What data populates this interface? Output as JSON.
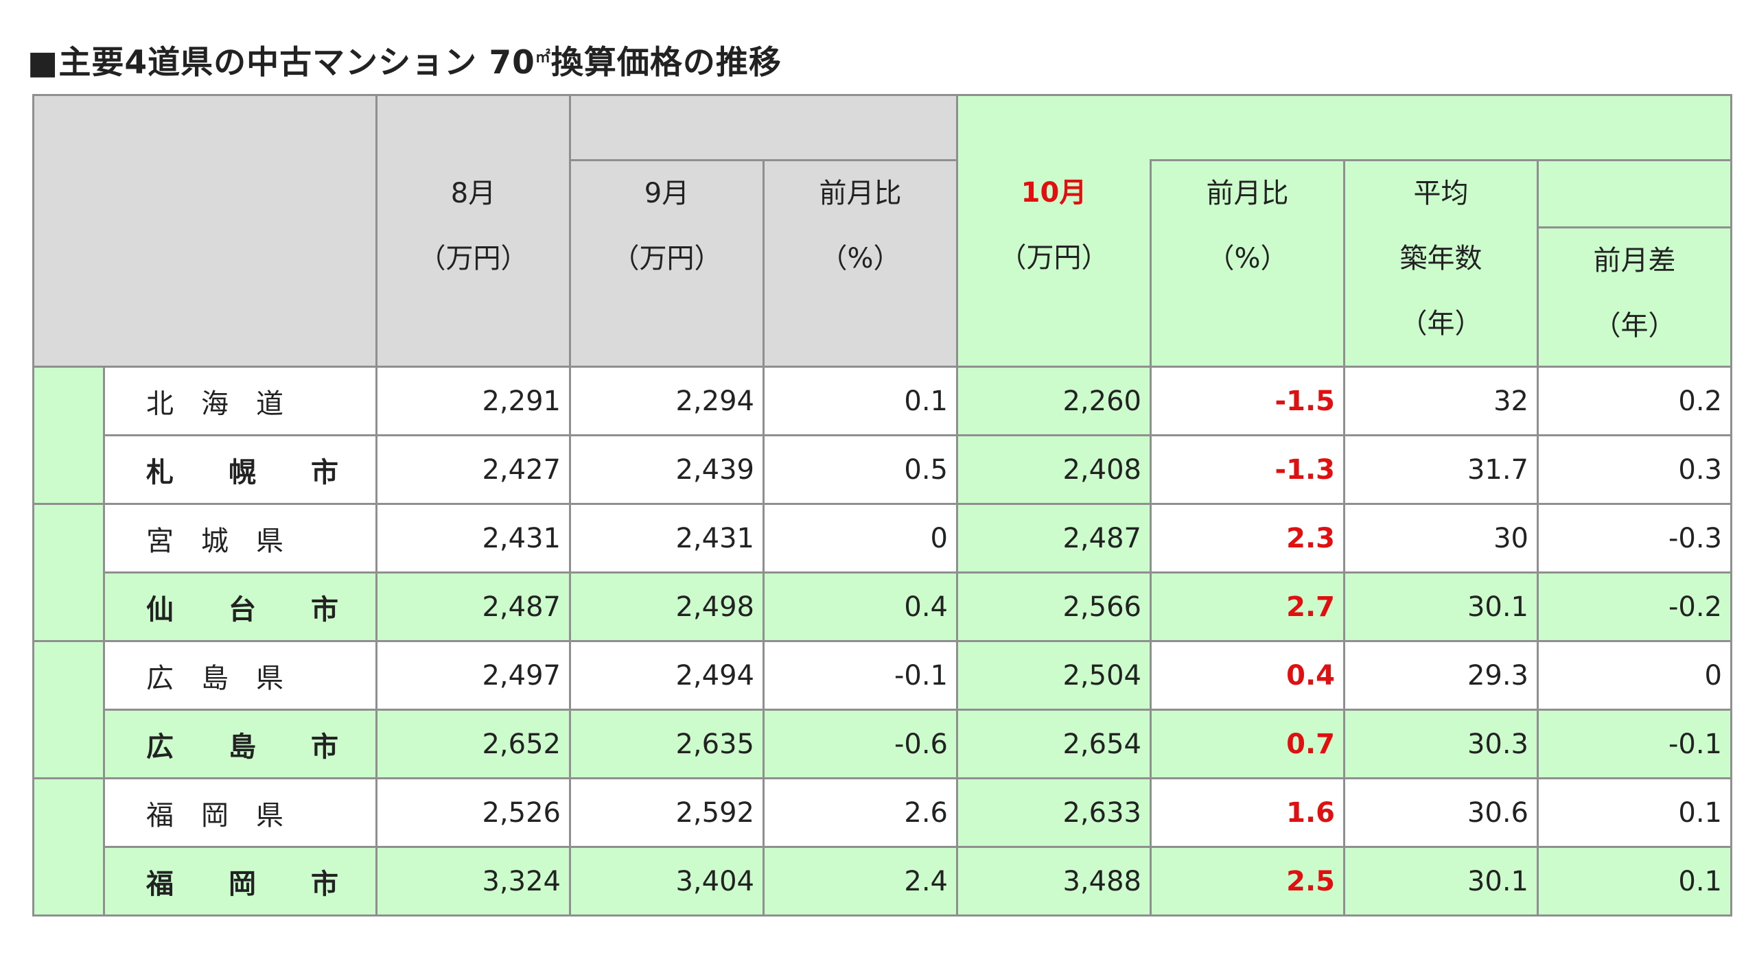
{
  "title": {
    "prefix": "■主要4道県の中古マンション 70",
    "unit": "㎡",
    "suffix": "換算価格の推移"
  },
  "headers": {
    "aug": {
      "line1": "8月",
      "line2": "（万円）"
    },
    "sep": {
      "line1": "9月",
      "line2": "（万円）"
    },
    "sep_ratio": {
      "line1": "前月比",
      "line2": "（%）"
    },
    "oct": {
      "line1": "10月",
      "line2": "（万円）"
    },
    "oct_ratio": {
      "line1": "前月比",
      "line2": "（%）"
    },
    "age": {
      "line1": "平均",
      "line2": "築年数",
      "line3": "（年）"
    },
    "age_diff": {
      "line1": "前月差",
      "line2": "（年）"
    }
  },
  "colors": {
    "gray": "#dadada",
    "green": "#ccfccc",
    "red": "#e01010",
    "border": "#8f8f8f"
  },
  "chart_data": {
    "type": "table",
    "title": "■主要4道県の中古マンション 70㎡換算価格の推移",
    "columns": [
      "8月（万円）",
      "9月（万円）",
      "前月比（%）",
      "10月（万円）",
      "前月比（%）",
      "平均築年数（年）",
      "前月差（年）"
    ],
    "rows": [
      {
        "name": "北　海　道",
        "values": [
          "2,291",
          "2,294",
          "0.1",
          "2,260",
          "-1.5",
          "32",
          "0.2"
        ]
      },
      {
        "name": "札　　幌　　市",
        "values": [
          "2,427",
          "2,439",
          "0.5",
          "2,408",
          "-1.3",
          "31.7",
          "0.3"
        ]
      },
      {
        "name": "宮　城　県",
        "values": [
          "2,431",
          "2,431",
          "0",
          "2,487",
          "2.3",
          "30",
          "-0.3"
        ]
      },
      {
        "name": "仙　　台　　市",
        "values": [
          "2,487",
          "2,498",
          "0.4",
          "2,566",
          "2.7",
          "30.1",
          "-0.2"
        ]
      },
      {
        "name": "広　島　県",
        "values": [
          "2,497",
          "2,494",
          "-0.1",
          "2,504",
          "0.4",
          "29.3",
          "0"
        ]
      },
      {
        "name": "広　　島　　市",
        "values": [
          "2,652",
          "2,635",
          "-0.6",
          "2,654",
          "0.7",
          "30.3",
          "-0.1"
        ]
      },
      {
        "name": "福　岡　県",
        "values": [
          "2,526",
          "2,592",
          "2.6",
          "2,633",
          "1.6",
          "30.6",
          "0.1"
        ]
      },
      {
        "name": "福　　岡　　市",
        "values": [
          "3,324",
          "3,404",
          "2.4",
          "3,488",
          "2.5",
          "30.1",
          "0.1"
        ]
      }
    ]
  }
}
